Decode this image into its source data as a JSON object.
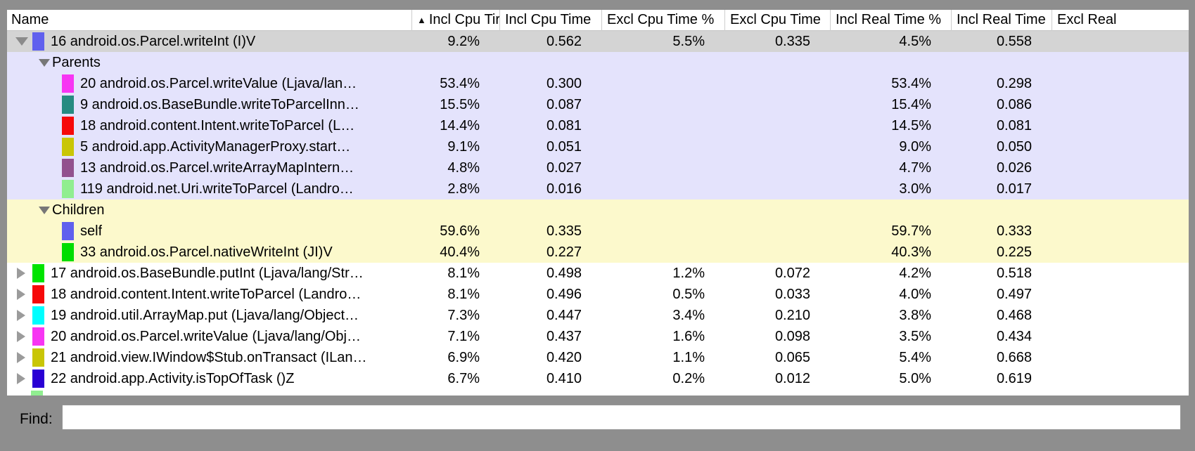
{
  "table": {
    "name_header": "Name",
    "sort_icon": "ascending-triangle",
    "columns": [
      {
        "label": "Incl Cpu Tir",
        "sorted": true
      },
      {
        "label": "Incl Cpu Time"
      },
      {
        "label": "Excl Cpu Time %"
      },
      {
        "label": "Excl Cpu Time"
      },
      {
        "label": "Incl Real Time %"
      },
      {
        "label": "Incl Real Time"
      },
      {
        "label": "Excl Real"
      }
    ],
    "section_colors": {
      "selected_row": "#d4d4d4",
      "parents_section": "#e4e3fc",
      "children_section": "#fcf9cc",
      "frame": "#8e8e8e"
    },
    "rows": [
      {
        "type": "main",
        "expander": "expanded",
        "selected": true,
        "bg": "selected",
        "color": "#6060ee",
        "label": "16 android.os.Parcel.writeInt (I)V",
        "values": [
          "9.2%",
          "0.562",
          "5.5%",
          "0.335",
          "4.5%",
          "0.558",
          ""
        ]
      },
      {
        "type": "section",
        "expander": "expanded",
        "bg": "parents",
        "label": "Parents",
        "values": [
          "",
          "",
          "",
          "",
          "",
          "",
          ""
        ]
      },
      {
        "type": "sub",
        "bg": "parents",
        "color": "#f735f3",
        "label": "20 android.os.Parcel.writeValue (Ljava/lan…",
        "values": [
          "53.4%",
          "0.300",
          "",
          "",
          "53.4%",
          "0.298",
          ""
        ]
      },
      {
        "type": "sub",
        "bg": "parents",
        "color": "#268b81",
        "label": "9 android.os.BaseBundle.writeToParcelInn…",
        "values": [
          "15.5%",
          "0.087",
          "",
          "",
          "15.4%",
          "0.086",
          ""
        ]
      },
      {
        "type": "sub",
        "bg": "parents",
        "color": "#f60909",
        "label": "18 android.content.Intent.writeToParcel (L…",
        "values": [
          "14.4%",
          "0.081",
          "",
          "",
          "14.5%",
          "0.081",
          ""
        ]
      },
      {
        "type": "sub",
        "bg": "parents",
        "color": "#c9c606",
        "label": "5 android.app.ActivityManagerProxy.start…",
        "values": [
          "9.1%",
          "0.051",
          "",
          "",
          "9.0%",
          "0.050",
          ""
        ]
      },
      {
        "type": "sub",
        "bg": "parents",
        "color": "#92518e",
        "label": "13 android.os.Parcel.writeArrayMapIntern…",
        "values": [
          "4.8%",
          "0.027",
          "",
          "",
          "4.7%",
          "0.026",
          ""
        ]
      },
      {
        "type": "sub",
        "bg": "parents",
        "color": "#90ee90",
        "label": "119 android.net.Uri.writeToParcel (Landro…",
        "values": [
          "2.8%",
          "0.016",
          "",
          "",
          "3.0%",
          "0.017",
          ""
        ]
      },
      {
        "type": "section",
        "expander": "expanded",
        "bg": "children",
        "label": "Children",
        "values": [
          "",
          "",
          "",
          "",
          "",
          "",
          ""
        ]
      },
      {
        "type": "sub",
        "bg": "children",
        "color": "#6060ee",
        "label": "self",
        "values": [
          "59.6%",
          "0.335",
          "",
          "",
          "59.7%",
          "0.333",
          ""
        ]
      },
      {
        "type": "sub",
        "bg": "children",
        "color": "#00dd00",
        "label": "33 android.os.Parcel.nativeWriteInt (JI)V",
        "values": [
          "40.4%",
          "0.227",
          "",
          "",
          "40.3%",
          "0.225",
          ""
        ]
      },
      {
        "type": "main",
        "expander": "collapsed",
        "bg": "white",
        "color": "#00e400",
        "label": "17 android.os.BaseBundle.putInt (Ljava/lang/Str…",
        "values": [
          "8.1%",
          "0.498",
          "1.2%",
          "0.072",
          "4.2%",
          "0.518",
          ""
        ]
      },
      {
        "type": "main",
        "expander": "collapsed",
        "bg": "white",
        "color": "#f60909",
        "label": "18 android.content.Intent.writeToParcel (Landro…",
        "values": [
          "8.1%",
          "0.496",
          "0.5%",
          "0.033",
          "4.0%",
          "0.497",
          ""
        ]
      },
      {
        "type": "main",
        "expander": "collapsed",
        "bg": "white",
        "color": "#00ffff",
        "label": "19 android.util.ArrayMap.put (Ljava/lang/Object…",
        "values": [
          "7.3%",
          "0.447",
          "3.4%",
          "0.210",
          "3.8%",
          "0.468",
          ""
        ]
      },
      {
        "type": "main",
        "expander": "collapsed",
        "bg": "white",
        "color": "#f735f3",
        "label": "20 android.os.Parcel.writeValue (Ljava/lang/Obj…",
        "values": [
          "7.1%",
          "0.437",
          "1.6%",
          "0.098",
          "3.5%",
          "0.434",
          ""
        ]
      },
      {
        "type": "main",
        "expander": "collapsed",
        "bg": "white",
        "color": "#c9c606",
        "label": "21 android.view.IWindow$Stub.onTransact (ILan…",
        "values": [
          "6.9%",
          "0.420",
          "1.1%",
          "0.065",
          "5.4%",
          "0.668",
          ""
        ]
      },
      {
        "type": "main",
        "expander": "collapsed",
        "bg": "white",
        "color": "#2a00d4",
        "label": "22 android.app.Activity.isTopOfTask ()Z",
        "values": [
          "6.7%",
          "0.410",
          "0.2%",
          "0.012",
          "5.0%",
          "0.619",
          ""
        ]
      },
      {
        "type": "partial",
        "bg": "white",
        "color": "#90ee90",
        "label": "",
        "values": [
          "",
          "",
          "",
          "",
          "",
          "",
          ""
        ]
      }
    ]
  },
  "find": {
    "label": "Find:",
    "value": ""
  }
}
